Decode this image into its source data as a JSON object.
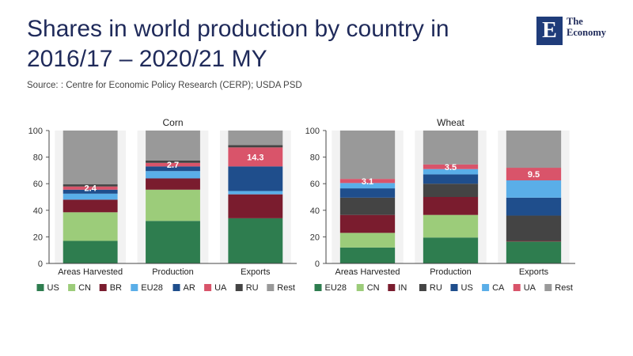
{
  "title_lines": [
    "Shares in world production by country in",
    "2016/17 – 2020/21 MY"
  ],
  "source": "Source: : Centre for Economic Policy Research (CERP); USDA PSD",
  "brand": {
    "mark": "E",
    "line1": "The",
    "line2": "Economy",
    "color": "#1f3c7a"
  },
  "chart_data": [
    {
      "type": "bar",
      "stacked": true,
      "title": "Corn",
      "categories": [
        "Areas Harvested",
        "Production",
        "Exports"
      ],
      "ylim": [
        0,
        100
      ],
      "yticks": [
        0,
        20,
        40,
        60,
        80,
        100
      ],
      "series": [
        {
          "name": "US",
          "color": "#2e7d4f",
          "values": [
            17,
            32,
            34
          ]
        },
        {
          "name": "CN",
          "color": "#9ccc7a",
          "values": [
            21.5,
            23.5,
            0
          ]
        },
        {
          "name": "BR",
          "color": "#7a1c2e",
          "values": [
            9.5,
            8.5,
            18
          ]
        },
        {
          "name": "EU28",
          "color": "#5aaee8",
          "values": [
            4.5,
            5.5,
            2.5
          ]
        },
        {
          "name": "AR",
          "color": "#1f4e8c",
          "values": [
            3,
            3.5,
            18.5
          ]
        },
        {
          "name": "UA",
          "color": "#d9546a",
          "values": [
            2.4,
            2.7,
            14.3
          ]
        },
        {
          "name": "RU",
          "color": "#444444",
          "values": [
            1.6,
            1.8,
            1.7
          ]
        },
        {
          "name": "Rest",
          "color": "#999999",
          "values": [
            40.5,
            22.5,
            11
          ]
        }
      ],
      "labels": [
        {
          "category": "Areas Harvested",
          "series": "UA",
          "text": "2.4"
        },
        {
          "category": "Production",
          "series": "UA",
          "text": "2.7"
        },
        {
          "category": "Exports",
          "series": "UA",
          "text": "14.3"
        }
      ]
    },
    {
      "type": "bar",
      "stacked": true,
      "title": "Wheat",
      "categories": [
        "Areas Harvested",
        "Production",
        "Exports"
      ],
      "ylim": [
        0,
        100
      ],
      "yticks": [
        0,
        20,
        40,
        60,
        80,
        100
      ],
      "series": [
        {
          "name": "EU28",
          "color": "#2e7d4f",
          "values": [
            12,
            19.5,
            16.5
          ]
        },
        {
          "name": "CN",
          "color": "#9ccc7a",
          "values": [
            11,
            17,
            0
          ]
        },
        {
          "name": "IN",
          "color": "#7a1c2e",
          "values": [
            13.5,
            13.5,
            0.5
          ]
        },
        {
          "name": "RU",
          "color": "#444444",
          "values": [
            13,
            10,
            19
          ]
        },
        {
          "name": "US",
          "color": "#1f4e8c",
          "values": [
            7,
            7,
            13.5
          ]
        },
        {
          "name": "CA",
          "color": "#5aaee8",
          "values": [
            4,
            4,
            13
          ]
        },
        {
          "name": "UA",
          "color": "#d9546a",
          "values": [
            3.1,
            3.5,
            9.5
          ]
        },
        {
          "name": "Rest",
          "color": "#999999",
          "values": [
            36.4,
            25.5,
            28
          ]
        }
      ],
      "labels": [
        {
          "category": "Areas Harvested",
          "series": "UA",
          "text": "3.1"
        },
        {
          "category": "Production",
          "series": "UA",
          "text": "3.5"
        },
        {
          "category": "Exports",
          "series": "UA",
          "text": "9.5"
        }
      ]
    }
  ]
}
